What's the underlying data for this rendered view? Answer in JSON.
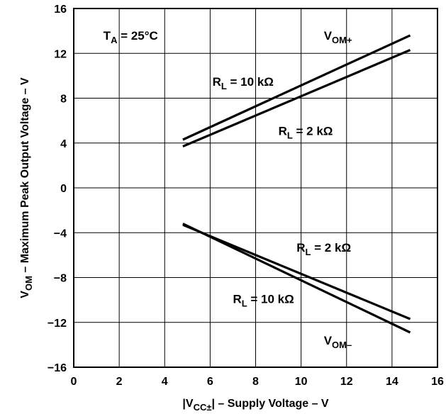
{
  "chart_data": {
    "type": "line",
    "xlabel": {
      "pre": "|V",
      "sub": "CC±",
      "post": "| – Supply Voltage – V"
    },
    "ylabel": {
      "pre": "V",
      "sub": "OM",
      "post": " – Maximum Peak Output Voltage – V"
    },
    "xlim": [
      0,
      16
    ],
    "ylim": [
      -16,
      16
    ],
    "x_ticks": [
      "0",
      "2",
      "4",
      "6",
      "8",
      "10",
      "12",
      "14",
      "16"
    ],
    "y_ticks": [
      "16",
      "12",
      "8",
      "4",
      "0",
      "−4",
      "−8",
      "−12",
      "−16"
    ],
    "grid": true,
    "series": [
      {
        "x": [
          4.8,
          14.8
        ],
        "y": [
          4.3,
          13.6
        ]
      },
      {
        "x": [
          4.8,
          14.8
        ],
        "y": [
          3.7,
          12.3
        ]
      },
      {
        "x": [
          4.8,
          14.8
        ],
        "y": [
          -3.3,
          -11.7
        ]
      },
      {
        "x": [
          4.8,
          14.8
        ],
        "y": [
          -3.2,
          -12.9
        ]
      }
    ],
    "annotations": [
      {
        "pre": "T",
        "sub": "A",
        "post": " = 25°C",
        "x": 1.3,
        "y": 13.6
      },
      {
        "pre": "V",
        "sub": "OM+",
        "post": "",
        "x": 11.0,
        "y": 13.6
      },
      {
        "pre": "R",
        "sub": "L",
        "post": " = 10 kΩ",
        "x": 6.1,
        "y": 9.5
      },
      {
        "pre": "R",
        "sub": "L",
        "post": " = 2 kΩ",
        "x": 9.0,
        "y": 5.1
      },
      {
        "pre": "R",
        "sub": "L",
        "post": " = 2 kΩ",
        "x": 9.8,
        "y": -5.3
      },
      {
        "pre": "R",
        "sub": "L",
        "post": " = 10 kΩ",
        "x": 7.0,
        "y": -9.9
      },
      {
        "pre": "V",
        "sub": "OM–",
        "post": "",
        "x": 11.0,
        "y": -13.6
      }
    ]
  }
}
